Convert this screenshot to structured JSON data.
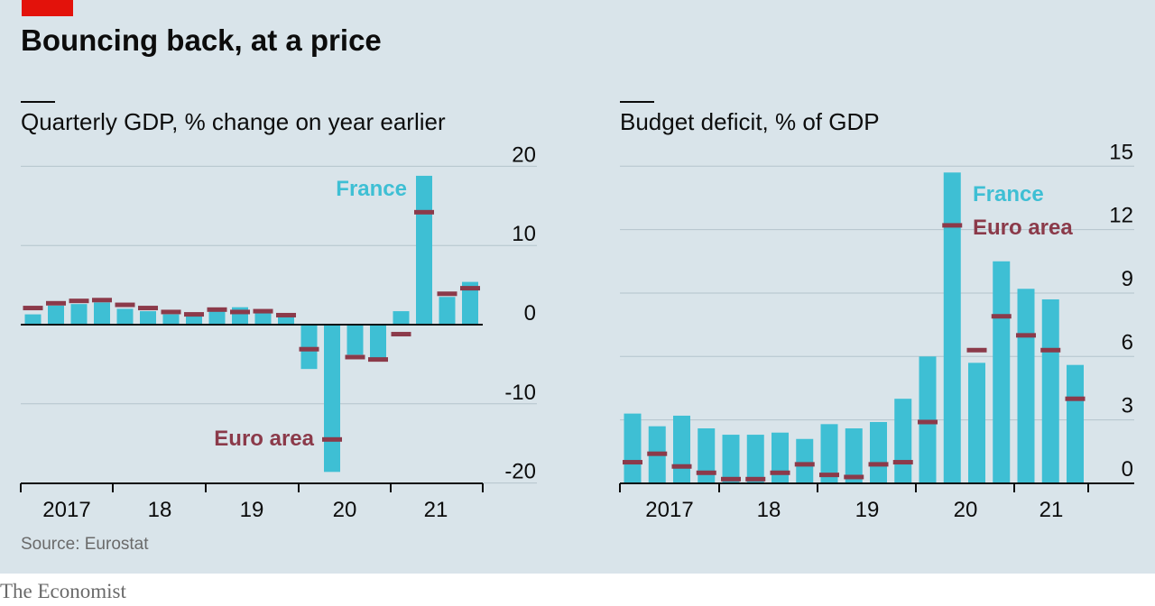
{
  "header": {
    "title": "Bouncing back, at a price",
    "source": "Source: Eurostat",
    "brand": "The Economist"
  },
  "colors": {
    "background": "#d9e4ea",
    "france_bar": "#3ebfd4",
    "euro_marker": "#8b3a4a",
    "grid": "#b4c4cc",
    "accent_red": "#e3120b"
  },
  "chart_data": [
    {
      "type": "bar",
      "title": "Quarterly GDP, % change on year earlier",
      "categories": [
        "2017 Q1",
        "2017 Q2",
        "2017 Q3",
        "2017 Q4",
        "2018 Q1",
        "2018 Q2",
        "2018 Q3",
        "2018 Q4",
        "2019 Q1",
        "2019 Q2",
        "2019 Q3",
        "2019 Q4",
        "2020 Q1",
        "2020 Q2",
        "2020 Q3",
        "2020 Q4",
        "2021 Q1",
        "2021 Q2",
        "2021 Q3",
        "2021 Q4"
      ],
      "series": [
        {
          "name": "France",
          "style": "bar",
          "values": [
            1.3,
            2.4,
            2.6,
            2.8,
            2.0,
            1.7,
            1.3,
            1.1,
            2.1,
            2.2,
            1.5,
            1.0,
            -5.6,
            -18.6,
            -3.8,
            -4.3,
            1.7,
            18.8,
            3.5,
            5.4
          ]
        },
        {
          "name": "Euro area",
          "style": "marker",
          "values": [
            2.1,
            2.7,
            3.0,
            3.1,
            2.5,
            2.1,
            1.6,
            1.3,
            1.9,
            1.6,
            1.7,
            1.2,
            -3.1,
            -14.5,
            -4.1,
            -4.4,
            -1.2,
            14.2,
            3.9,
            4.6
          ]
        }
      ],
      "xticks": [
        "2017",
        "18",
        "19",
        "20",
        "21"
      ],
      "yticks": [
        20,
        10,
        0,
        -10,
        -20
      ],
      "ytick_labels": [
        "20",
        "10",
        "0",
        "-10",
        "-20"
      ],
      "ylim": [
        -20,
        20
      ],
      "labels": {
        "france": "France",
        "euro": "Euro area"
      }
    },
    {
      "type": "bar",
      "title": "Budget deficit, % of GDP",
      "categories": [
        "2017 Q1",
        "2017 Q2",
        "2017 Q3",
        "2017 Q4",
        "2018 Q1",
        "2018 Q2",
        "2018 Q3",
        "2018 Q4",
        "2019 Q1",
        "2019 Q2",
        "2019 Q3",
        "2019 Q4",
        "2020 Q1",
        "2020 Q2",
        "2020 Q3",
        "2020 Q4",
        "2021 Q1",
        "2021 Q2",
        "2021 Q3"
      ],
      "series": [
        {
          "name": "France",
          "style": "bar",
          "values": [
            3.3,
            2.7,
            3.2,
            2.6,
            2.3,
            2.3,
            2.4,
            2.1,
            2.8,
            2.6,
            2.9,
            4.0,
            6.0,
            14.7,
            5.7,
            10.5,
            9.2,
            8.7,
            5.6
          ]
        },
        {
          "name": "Euro area",
          "style": "marker",
          "values": [
            1.0,
            1.4,
            0.8,
            0.5,
            0.2,
            0.2,
            0.5,
            0.9,
            0.4,
            0.3,
            0.9,
            1.0,
            2.9,
            12.2,
            6.3,
            7.9,
            7.0,
            6.3,
            4.0
          ]
        }
      ],
      "xticks": [
        "2017",
        "18",
        "19",
        "20",
        "21"
      ],
      "yticks": [
        15,
        12,
        9,
        6,
        3,
        0
      ],
      "ytick_labels": [
        "15",
        "12",
        "9",
        "6",
        "3",
        "0"
      ],
      "ylim": [
        0,
        15
      ],
      "labels": {
        "france": "France",
        "euro": "Euro area"
      }
    }
  ]
}
